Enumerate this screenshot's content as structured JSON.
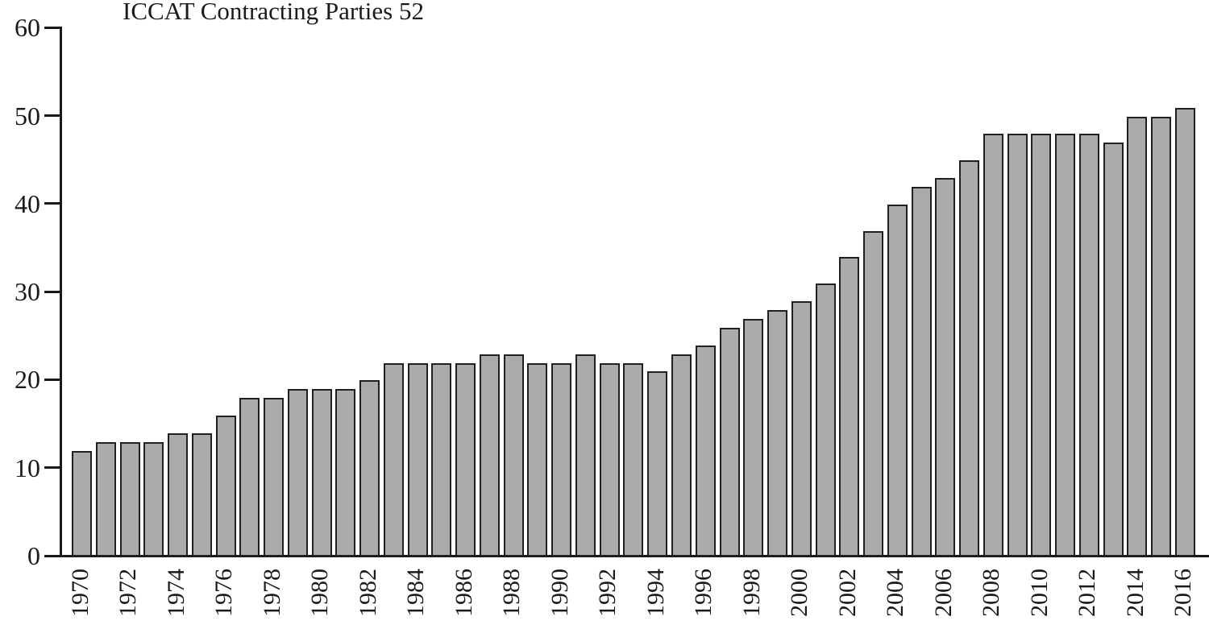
{
  "title": "ICCAT Contracting Parties 52",
  "chart_data": {
    "type": "bar",
    "title": "ICCAT Contracting Parties 52",
    "xlabel": "",
    "ylabel": "",
    "ylim": [
      0,
      60
    ],
    "grid": false,
    "legend": null,
    "x": [
      1970,
      1971,
      1972,
      1973,
      1974,
      1975,
      1976,
      1977,
      1978,
      1979,
      1980,
      1981,
      1982,
      1983,
      1984,
      1985,
      1986,
      1987,
      1988,
      1989,
      1990,
      1991,
      1992,
      1993,
      1994,
      1995,
      1996,
      1997,
      1998,
      1999,
      2000,
      2001,
      2002,
      2003,
      2004,
      2005,
      2006,
      2007,
      2008,
      2009,
      2010,
      2011,
      2012,
      2013,
      2014,
      2015,
      2016
    ],
    "values": [
      12,
      13,
      13,
      13,
      14,
      14,
      16,
      18,
      18,
      19,
      19,
      19,
      20,
      22,
      22,
      22,
      22,
      23,
      23,
      22,
      22,
      23,
      22,
      22,
      21,
      23,
      24,
      26,
      27,
      28,
      29,
      31,
      34,
      37,
      40,
      42,
      43,
      45,
      48,
      48,
      48,
      48,
      48,
      47,
      50,
      50,
      51
    ],
    "xtick_labels": [
      "1970",
      "1972",
      "1974",
      "1976",
      "1978",
      "1980",
      "1982",
      "1984",
      "1986",
      "1988",
      "1990",
      "1992",
      "1994",
      "1996",
      "1998",
      "2000",
      "2002",
      "2004",
      "2006",
      "2008",
      "2010",
      "2012",
      "2014",
      "2016"
    ],
    "ytick_labels": [
      "0",
      "10",
      "20",
      "30",
      "40",
      "50",
      "60"
    ],
    "ytick_values": [
      0,
      10,
      20,
      30,
      40,
      50,
      60
    ],
    "bar_fill_color": "#ababab",
    "bar_border_color": "#202020",
    "axis_color": "#1a1a1a",
    "text_color": "#1a1a1a",
    "background_color": "#ffffff"
  }
}
